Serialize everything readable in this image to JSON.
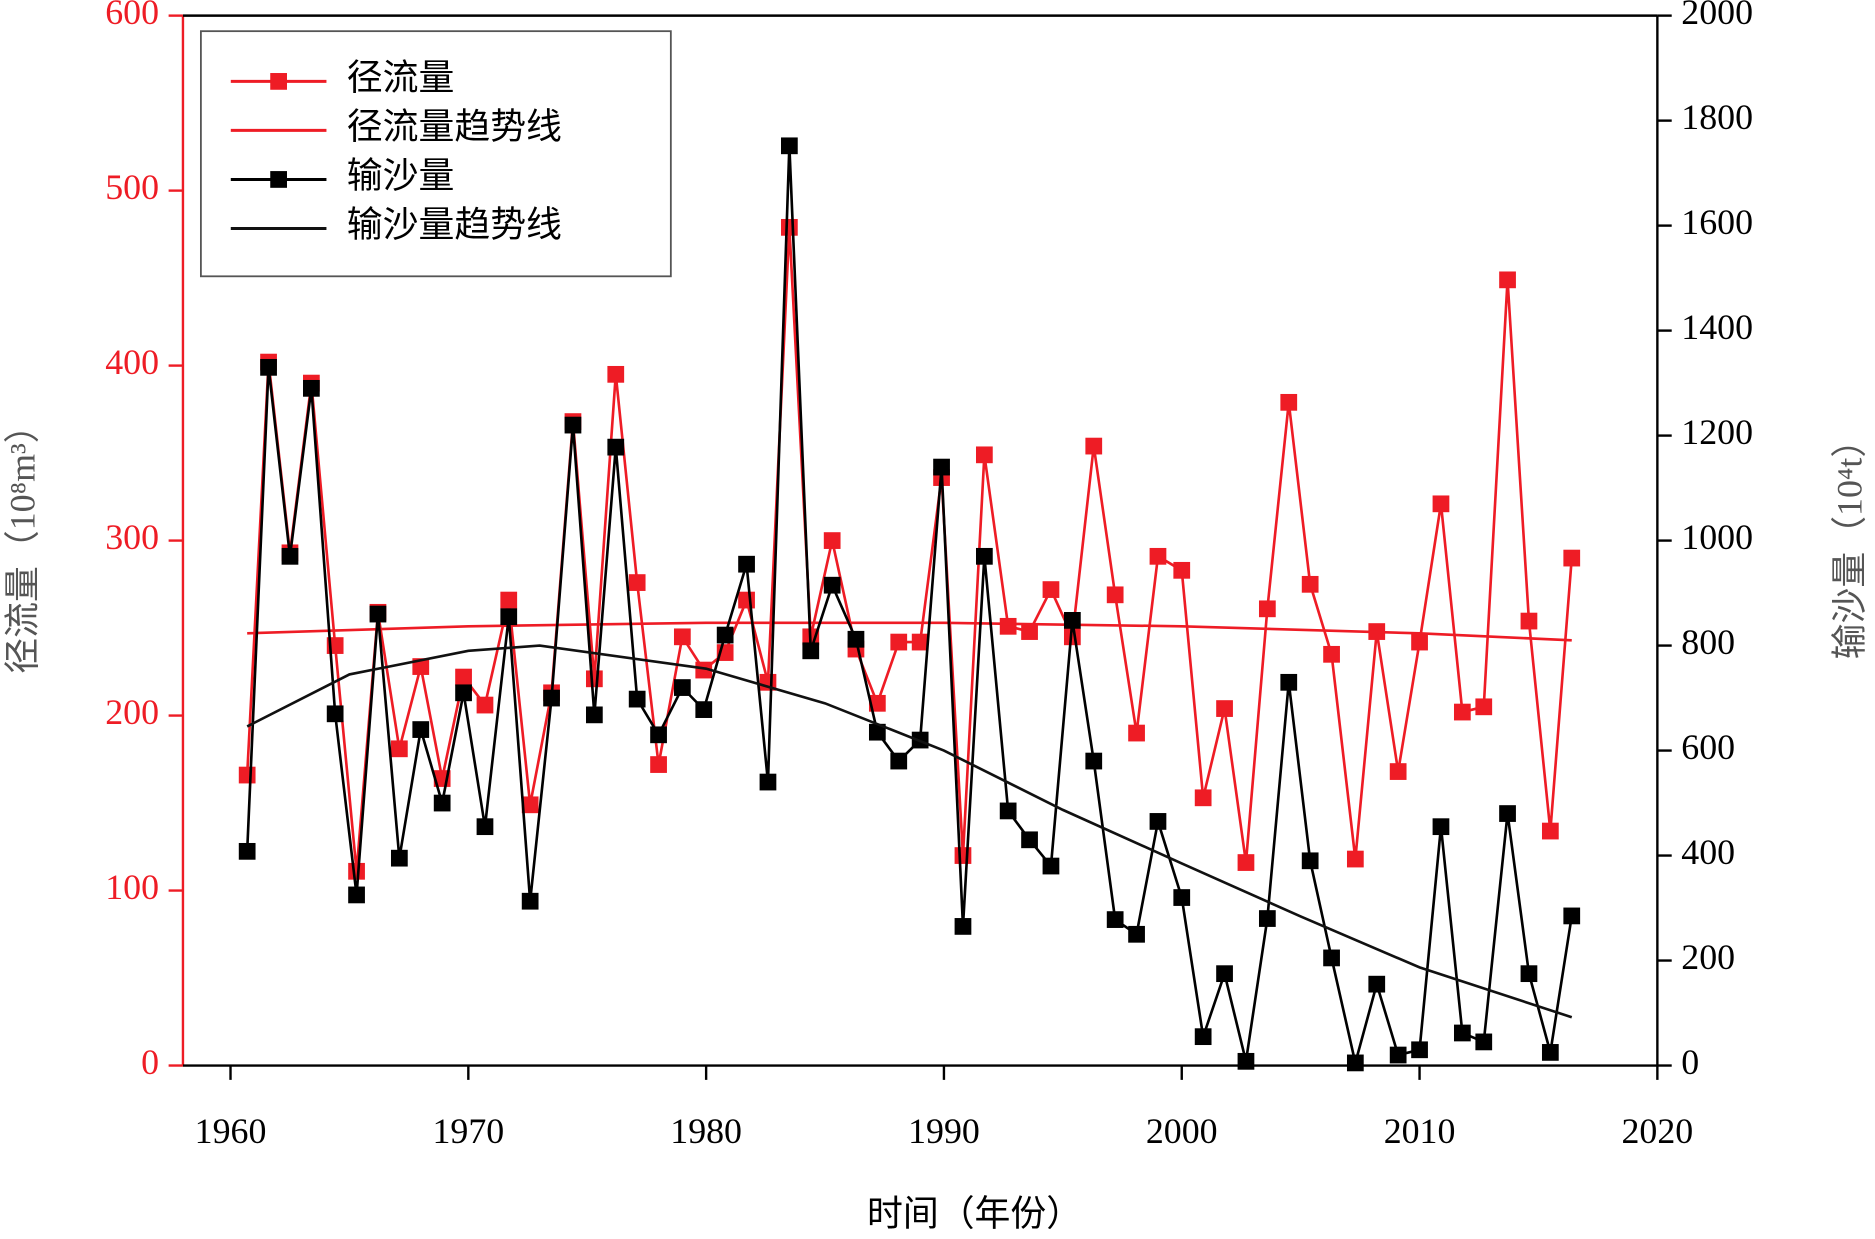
{
  "chart_data": {
    "type": "line",
    "x_label": "时间（年份）",
    "y_label": "径流量（10⁸m³）",
    "y2_label": "输沙量（10⁴t）",
    "x": [
      1960.7,
      1961.6,
      1962.5,
      1963.4,
      1964.4,
      1965.3,
      1966.2,
      1967.1,
      1968.0,
      1968.9,
      1969.8,
      1970.7,
      1971.7,
      1972.6,
      1973.5,
      1974.4,
      1975.3,
      1976.2,
      1977.1,
      1978.0,
      1979.0,
      1979.9,
      1980.8,
      1981.7,
      1982.6,
      1983.5,
      1984.4,
      1985.3,
      1986.3,
      1987.2,
      1988.1,
      1989.0,
      1989.9,
      1990.8,
      1991.7,
      1992.7,
      1993.6,
      1994.5,
      1995.4,
      1996.3,
      1997.2,
      1998.1,
      1999.0,
      2000.0,
      2000.9,
      2001.8,
      2002.7,
      2003.6,
      2004.5,
      2005.4,
      2006.3,
      2007.3,
      2008.2,
      2009.1,
      2010.0,
      2010.9,
      2011.8,
      2012.7,
      2013.7,
      2014.6,
      2015.5,
      2016.4
    ],
    "series": [
      {
        "name": "径流量",
        "color": "#ee1c25",
        "marker": true,
        "values": [
          166,
          402,
          293,
          390,
          240,
          111,
          259,
          181,
          228,
          164,
          222,
          206,
          266,
          149,
          213,
          368,
          221,
          395,
          276,
          172,
          245,
          226,
          236,
          266,
          219,
          479,
          245,
          300,
          238,
          207,
          242,
          242,
          336,
          120,
          349,
          251,
          248,
          272,
          245,
          354,
          269,
          190,
          291,
          283,
          153,
          204,
          116,
          261,
          379,
          275,
          235,
          118,
          248,
          168,
          242,
          321,
          202,
          205,
          449,
          254,
          134,
          290
        ]
      },
      {
        "name": "径流量趋势线",
        "color": "#ee1c25",
        "marker": false,
        "x": [
          1960.7,
          1970,
          1980,
          1990,
          2000,
          2010,
          2016.4
        ],
        "values": [
          247,
          251,
          253,
          253,
          251,
          247,
          243
        ]
      },
      {
        "name": "输沙量",
        "color": "#000000",
        "marker": true,
        "axis": "y2",
        "values": [
          408,
          1330,
          970,
          1290,
          670,
          325,
          860,
          395,
          640,
          500,
          710,
          455,
          855,
          313,
          700,
          1220,
          668,
          1178,
          698,
          630,
          720,
          678,
          820,
          955,
          540,
          1752,
          790,
          915,
          812,
          635,
          580,
          620,
          1140,
          265,
          970,
          485,
          430,
          380,
          848,
          580,
          278,
          250,
          465,
          320,
          55,
          175,
          8,
          280,
          730,
          390,
          205,
          5,
          155,
          20,
          30,
          455,
          62,
          45,
          480,
          175,
          25,
          285
        ]
      },
      {
        "name": "输沙量趋势线",
        "color": "#111111",
        "marker": false,
        "axis": "y2",
        "x": [
          1960.7,
          1965,
          1970,
          1973,
          1980,
          1985,
          1990,
          1995,
          2000,
          2005,
          2010,
          2016.4
        ],
        "values": [
          646,
          745,
          790,
          800,
          756,
          690,
          600,
          487,
          385,
          284,
          187,
          92
        ]
      }
    ],
    "xlim": [
      1958,
      2020
    ],
    "xticks": [
      1960,
      1970,
      1980,
      1990,
      2000,
      2010,
      2020
    ],
    "ylim": [
      0,
      600
    ],
    "yticks": [
      0,
      100,
      200,
      300,
      400,
      500,
      600
    ],
    "y_color": "#ee1c25",
    "y2lim": [
      0,
      2000
    ],
    "y2ticks": [
      0,
      200,
      400,
      600,
      800,
      1000,
      1200,
      1400,
      1600,
      1800,
      2000
    ],
    "legend": "upper-left"
  }
}
